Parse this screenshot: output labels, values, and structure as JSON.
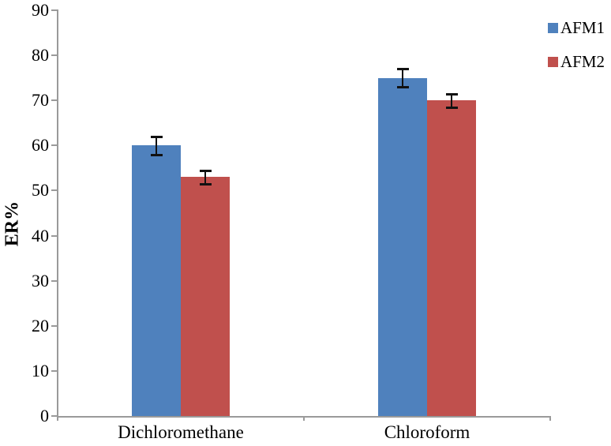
{
  "chart_data": {
    "type": "bar",
    "title": "",
    "categories": [
      "Dichloromethane",
      "Chloroform"
    ],
    "series": [
      {
        "name": "AFM1",
        "color": "#4F81BD",
        "values": [
          60,
          75
        ],
        "errors": [
          2,
          2
        ]
      },
      {
        "name": "AFM2",
        "color": "#C0504D",
        "values": [
          53,
          70
        ],
        "errors": [
          1.5,
          1.5
        ]
      }
    ],
    "xlabel": "",
    "ylabel": "ER%",
    "ylim": [
      0,
      90
    ],
    "ytick_step": 10,
    "yticks": [
      0,
      10,
      20,
      30,
      40,
      50,
      60,
      70,
      80,
      90
    ],
    "grid": false,
    "error_bars": true,
    "legend_position": "top-right",
    "axis_color": "#9a9a9a",
    "text_color": "#000000"
  }
}
